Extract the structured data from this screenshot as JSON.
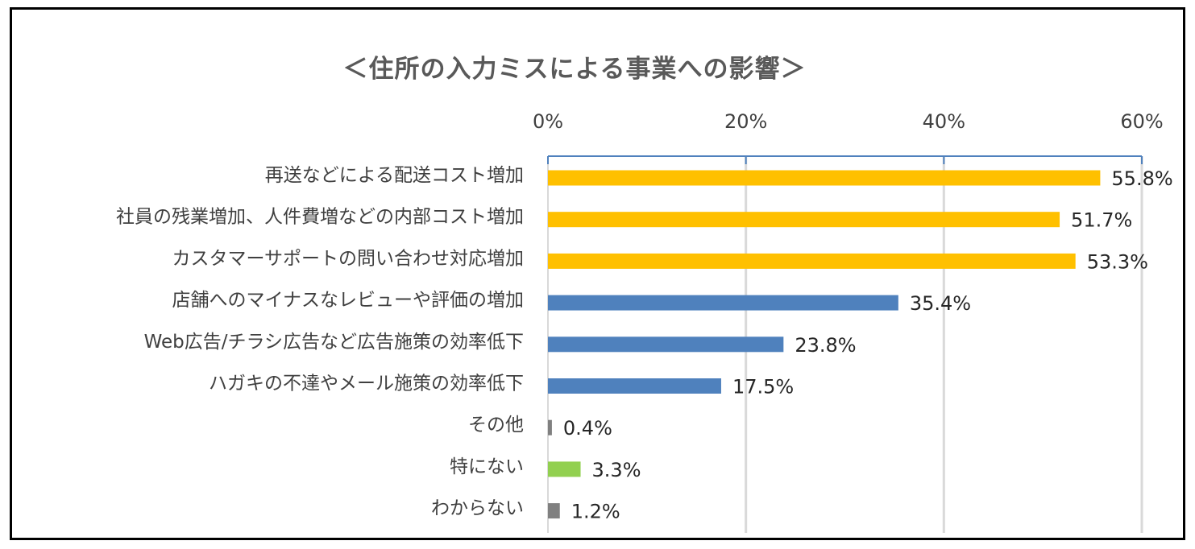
{
  "chart_data": {
    "type": "bar",
    "orientation": "horizontal",
    "title": "＜住所の入力ミスによる事業への影響＞",
    "categories": [
      "再送などによる配送コスト増加",
      "社員の残業増加、人件費増などの内部コスト増加",
      "カスタマーサポートの問い合わせ対応増加",
      "店舗へのマイナスなレビューや評価の増加",
      "Web広告/チラシ広告など広告施策の効率低下",
      "ハガキの不達やメール施策の効率低下",
      "その他",
      "特にない",
      "わからない"
    ],
    "values": [
      55.8,
      51.7,
      53.3,
      35.4,
      23.8,
      17.5,
      0.4,
      3.3,
      1.2
    ],
    "value_labels": [
      "55.8%",
      "51.7%",
      "53.3%",
      "35.4%",
      "23.8%",
      "17.5%",
      "0.4%",
      "3.3%",
      "1.2%"
    ],
    "bar_colors": [
      "#FFC000",
      "#FFC000",
      "#FFC000",
      "#4F81BD",
      "#4F81BD",
      "#4F81BD",
      "#808080",
      "#92D050",
      "#808080"
    ],
    "xlim": [
      0,
      60
    ],
    "xticks": [
      0,
      20,
      40,
      60
    ],
    "xtick_labels": [
      "0%",
      "20%",
      "40%",
      "60%"
    ],
    "x_axis_position": "top",
    "grid": true,
    "legend": "none"
  }
}
